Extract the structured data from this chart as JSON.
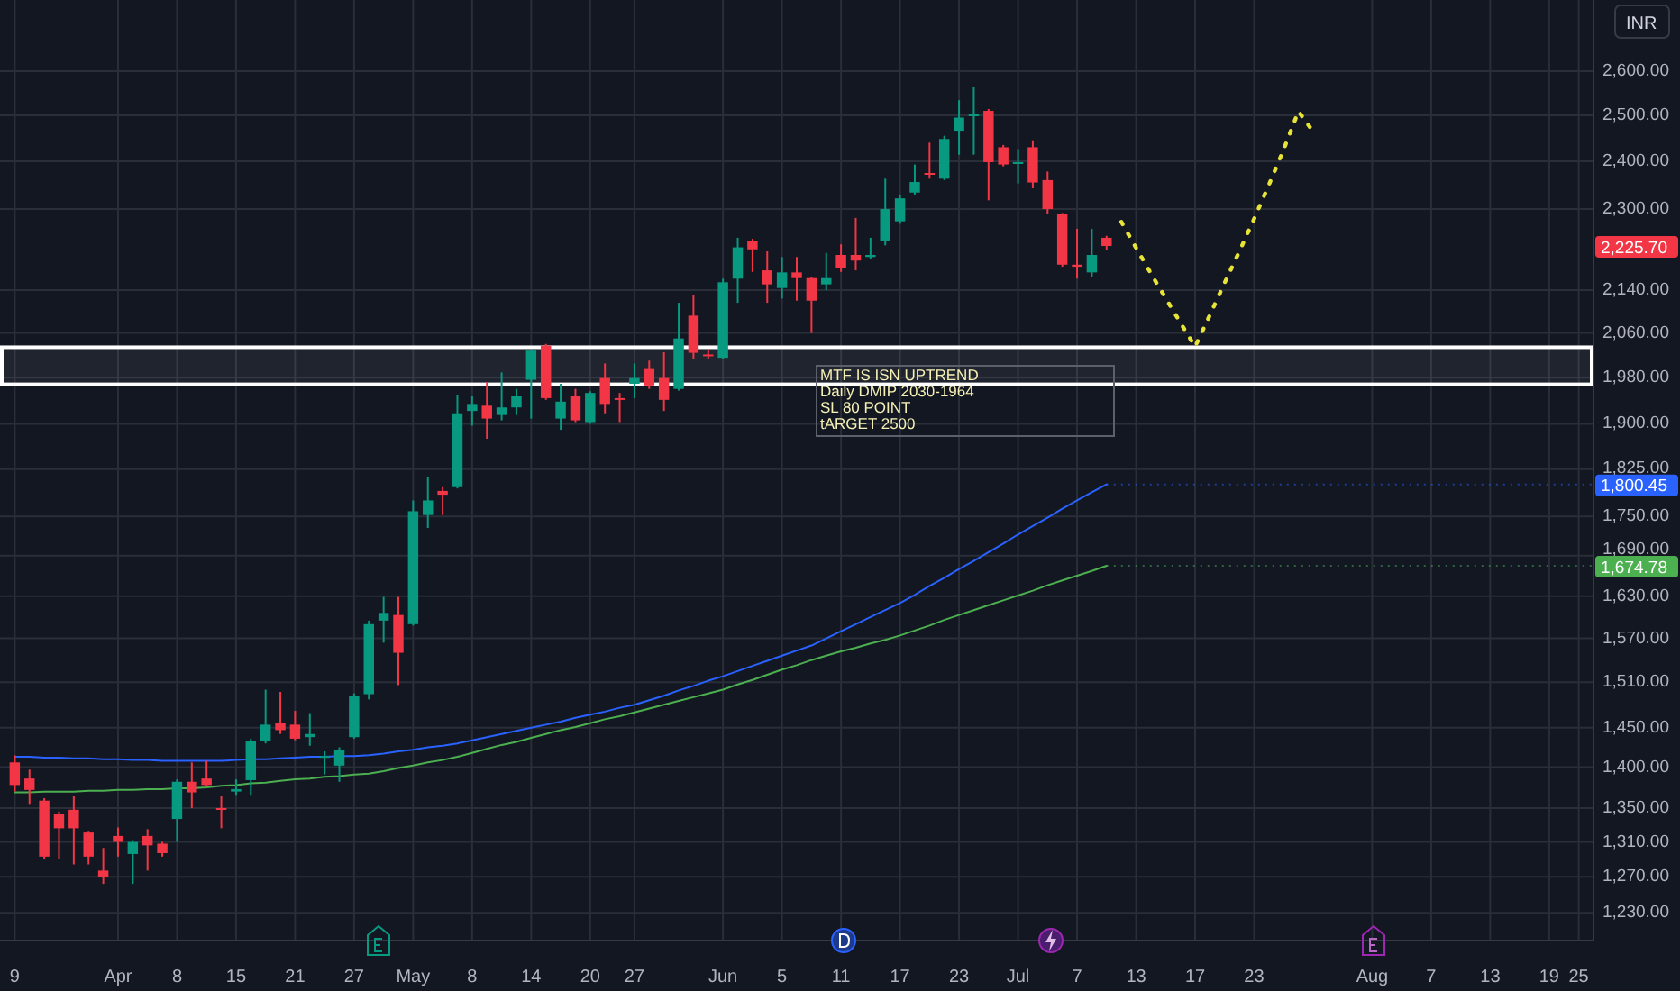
{
  "chart_data": {
    "type": "candlestick",
    "ylabel": "INR",
    "log": true,
    "grid": true,
    "categories": [
      "9",
      null,
      null,
      null,
      null,
      null,
      null,
      "Apr",
      null,
      null,
      null,
      "8",
      null,
      null,
      null,
      "15",
      null,
      null,
      null,
      "21",
      null,
      null,
      null,
      "27",
      null,
      null,
      null,
      "May",
      null,
      null,
      null,
      "8",
      null,
      null,
      null,
      "14",
      null,
      null,
      null,
      "20",
      null,
      null,
      "27",
      null,
      null,
      null,
      null,
      null,
      "Jun",
      null,
      null,
      null,
      "5",
      null,
      null,
      null,
      "11",
      null,
      null,
      null,
      "17",
      null,
      null,
      null,
      "23",
      null,
      null,
      null,
      "Jul",
      null,
      null,
      null,
      "7",
      null,
      null,
      null,
      "13",
      null,
      null,
      null,
      "17",
      null,
      null,
      null,
      "23",
      null,
      null,
      null,
      null,
      null,
      null,
      null,
      "Aug",
      null,
      null,
      null,
      "7",
      null,
      null,
      null,
      "13",
      null,
      null,
      null,
      "19",
      null,
      "25"
    ],
    "ohlc": [
      [
        1406,
        1415,
        1370,
        1378
      ],
      [
        1386,
        1397,
        1355,
        1372
      ],
      [
        1359,
        1362,
        1290,
        1293
      ],
      [
        1343,
        1346,
        1290,
        1326
      ],
      [
        1348,
        1365,
        1284,
        1326
      ],
      [
        1321,
        1323,
        1284,
        1293
      ],
      [
        1277,
        1303,
        1262,
        1270
      ],
      [
        1317,
        1327,
        1293,
        1310
      ],
      [
        1296,
        1312,
        1262,
        1310
      ],
      [
        1317,
        1325,
        1277,
        1306
      ],
      [
        1308,
        1310,
        1293,
        1297
      ],
      [
        1337,
        1385,
        1310,
        1382
      ],
      [
        1382,
        1406,
        1350,
        1369
      ],
      [
        1386,
        1408,
        1376,
        1378
      ],
      [
        1350,
        1365,
        1326,
        1348
      ],
      [
        1370,
        1385,
        1366,
        1373
      ],
      [
        1384,
        1436,
        1366,
        1433
      ],
      [
        1433,
        1500,
        1430,
        1454
      ],
      [
        1456,
        1497,
        1442,
        1447
      ],
      [
        1454,
        1472,
        1434,
        1436
      ],
      [
        1438,
        1469,
        1427,
        1442
      ],
      [
        1412,
        1420,
        1391,
        1414
      ],
      [
        1402,
        1425,
        1382,
        1422
      ],
      [
        1438,
        1495,
        1436,
        1491
      ],
      [
        1494,
        1595,
        1487,
        1590
      ],
      [
        1595,
        1629,
        1564,
        1606
      ],
      [
        1603,
        1629,
        1506,
        1550
      ],
      [
        1590,
        1775,
        1588,
        1758
      ],
      [
        1752,
        1812,
        1732,
        1775
      ],
      [
        1790,
        1796,
        1752,
        1784
      ],
      [
        1796,
        1950,
        1794,
        1918
      ],
      [
        1922,
        1947,
        1897,
        1934
      ],
      [
        1931,
        1972,
        1875,
        1909
      ],
      [
        1915,
        1989,
        1906,
        1928
      ],
      [
        1928,
        1960,
        1915,
        1947
      ],
      [
        1976,
        2028,
        1909,
        2028
      ],
      [
        2037,
        2040,
        1941,
        1944
      ],
      [
        1909,
        1969,
        1890,
        1938
      ],
      [
        1947,
        1960,
        1903,
        1906
      ],
      [
        1903,
        1956,
        1900,
        1953
      ],
      [
        1979,
        2005,
        1918,
        1934
      ],
      [
        1944,
        1953,
        1903,
        1941
      ],
      [
        1969,
        2005,
        1944,
        1979
      ],
      [
        1995,
        2010,
        1960,
        1966
      ],
      [
        1979,
        2025,
        1922,
        1941
      ],
      [
        1960,
        2116,
        1957,
        2050
      ],
      [
        2092,
        2130,
        2012,
        2024
      ],
      [
        2021,
        2030,
        2012,
        2020
      ],
      [
        2015,
        2162,
        2012,
        2155
      ],
      [
        2162,
        2242,
        2116,
        2223
      ],
      [
        2235,
        2240,
        2175,
        2219
      ],
      [
        2178,
        2215,
        2116,
        2151
      ],
      [
        2144,
        2204,
        2124,
        2174
      ],
      [
        2174,
        2204,
        2120,
        2163
      ],
      [
        2163,
        2166,
        2060,
        2120
      ],
      [
        2151,
        2212,
        2140,
        2163
      ],
      [
        2208,
        2229,
        2175,
        2182
      ],
      [
        2208,
        2282,
        2178,
        2197
      ],
      [
        2204,
        2242,
        2201,
        2208
      ],
      [
        2235,
        2363,
        2227,
        2300
      ],
      [
        2275,
        2330,
        2270,
        2322
      ],
      [
        2334,
        2393,
        2330,
        2356
      ],
      [
        2375,
        2440,
        2363,
        2373
      ],
      [
        2363,
        2455,
        2360,
        2448
      ],
      [
        2466,
        2534,
        2414,
        2495
      ],
      [
        2498,
        2563,
        2414,
        2502
      ],
      [
        2510,
        2514,
        2318,
        2398
      ],
      [
        2430,
        2435,
        2389,
        2393
      ],
      [
        2396,
        2426,
        2353,
        2398
      ],
      [
        2430,
        2445,
        2343,
        2355
      ],
      [
        2360,
        2378,
        2290,
        2300
      ],
      [
        2290,
        2292,
        2185,
        2189
      ],
      [
        2189,
        2260,
        2162,
        2185
      ],
      [
        2174,
        2260,
        2166,
        2208
      ],
      [
        2242,
        2246,
        2218,
        2225.7
      ],
      null,
      null,
      null,
      null,
      null,
      null,
      null,
      null,
      null,
      null,
      null,
      null,
      null,
      null,
      null,
      null,
      null,
      null,
      null,
      null,
      null,
      null,
      null,
      null,
      null,
      null,
      null,
      null,
      null,
      null,
      null,
      null
    ],
    "value_labels": [
      null,
      null,
      null,
      null,
      null,
      null,
      null,
      null,
      null,
      null,
      null,
      null,
      null,
      null,
      null,
      null,
      null,
      null,
      null,
      null,
      null,
      null,
      null,
      null,
      null,
      null,
      null,
      null,
      null,
      null,
      null,
      null,
      null,
      null,
      null,
      null,
      null,
      null,
      null,
      null,
      null,
      null,
      null,
      null,
      null,
      null,
      null,
      null,
      null,
      null,
      null,
      null,
      null,
      null,
      null,
      null,
      null,
      null,
      null,
      null,
      null,
      null,
      null,
      null,
      null,
      null,
      null,
      null,
      null,
      null,
      null,
      null,
      null,
      null,
      "2,225.70",
      null,
      null,
      null,
      null,
      null,
      null,
      null,
      null,
      null,
      null,
      null,
      null,
      null,
      null,
      null,
      null,
      null,
      null,
      null,
      null,
      null,
      null,
      null,
      null,
      null,
      null,
      null,
      null,
      null,
      null,
      null,
      null
    ],
    "series": [
      {
        "type": "line",
        "color": "#2962ff",
        "values": [
          1413,
          1413,
          1412,
          1412,
          1411,
          1411,
          1410,
          1410,
          1409,
          1409,
          1408,
          1408,
          1408,
          1408,
          1408,
          1409,
          1410,
          1410,
          1411,
          1412,
          1413,
          1413,
          1414,
          1414,
          1415,
          1417,
          1420,
          1422,
          1425,
          1427,
          1430,
          1434,
          1438,
          1442,
          1446,
          1450,
          1454,
          1458,
          1463,
          1467,
          1471,
          1476,
          1480,
          1486,
          1492,
          1499,
          1505,
          1512,
          1518,
          1525,
          1532,
          1539,
          1546,
          1553,
          1560,
          1570,
          1580,
          1590,
          1600,
          1610,
          1620,
          1632,
          1645,
          1657,
          1670,
          1682,
          1695,
          1708,
          1722,
          1735,
          1748,
          1762,
          1775,
          1788,
          1800.45,
          null,
          null,
          null,
          null,
          null,
          null,
          null,
          null,
          null,
          null,
          null,
          null,
          null,
          null,
          null,
          null,
          null,
          null,
          null,
          null,
          null,
          null,
          null,
          null,
          null,
          null,
          null,
          null,
          null,
          null,
          null,
          null
        ],
        "value_labels": [
          null,
          null,
          null,
          null,
          null,
          null,
          null,
          null,
          null,
          null,
          null,
          null,
          null,
          null,
          null,
          null,
          null,
          null,
          null,
          null,
          null,
          null,
          null,
          null,
          null,
          null,
          null,
          null,
          null,
          null,
          null,
          null,
          null,
          null,
          null,
          null,
          null,
          null,
          null,
          null,
          null,
          null,
          null,
          null,
          null,
          null,
          null,
          null,
          null,
          null,
          null,
          null,
          null,
          null,
          null,
          null,
          null,
          null,
          null,
          null,
          null,
          null,
          null,
          null,
          null,
          null,
          null,
          null,
          null,
          null,
          null,
          null,
          null,
          null,
          "1,800.45",
          null,
          null,
          null,
          null,
          null,
          null,
          null,
          null,
          null,
          null,
          null,
          null,
          null,
          null,
          null,
          null,
          null,
          null,
          null,
          null,
          null,
          null,
          null,
          null,
          null,
          null,
          null,
          null,
          null,
          null,
          null,
          null
        ]
      },
      {
        "type": "line",
        "color": "#4caf50",
        "values": [
          1369,
          1369,
          1370,
          1370,
          1370,
          1371,
          1371,
          1372,
          1372,
          1373,
          1373,
          1374,
          1374,
          1375,
          1377,
          1378,
          1380,
          1381,
          1383,
          1385,
          1386,
          1388,
          1389,
          1391,
          1392,
          1395,
          1399,
          1402,
          1406,
          1409,
          1413,
          1418,
          1423,
          1428,
          1432,
          1437,
          1442,
          1447,
          1451,
          1456,
          1461,
          1465,
          1470,
          1475,
          1480,
          1485,
          1490,
          1495,
          1500,
          1507,
          1513,
          1520,
          1527,
          1533,
          1540,
          1546,
          1552,
          1557,
          1563,
          1568,
          1574,
          1581,
          1588,
          1596,
          1603,
          1610,
          1617,
          1624,
          1631,
          1638,
          1646,
          1653,
          1660,
          1667,
          1674.78,
          null,
          null,
          null,
          null,
          null,
          null,
          null,
          null,
          null,
          null,
          null,
          null,
          null,
          null,
          null,
          null,
          null,
          null,
          null,
          null,
          null,
          null,
          null,
          null,
          null,
          null,
          null,
          null,
          null,
          null,
          null,
          null
        ],
        "value_labels": [
          null,
          null,
          null,
          null,
          null,
          null,
          null,
          null,
          null,
          null,
          null,
          null,
          null,
          null,
          null,
          null,
          null,
          null,
          null,
          null,
          null,
          null,
          null,
          null,
          null,
          null,
          null,
          null,
          null,
          null,
          null,
          null,
          null,
          null,
          null,
          null,
          null,
          null,
          null,
          null,
          null,
          null,
          null,
          null,
          null,
          null,
          null,
          null,
          null,
          null,
          null,
          null,
          null,
          null,
          null,
          null,
          null,
          null,
          null,
          null,
          null,
          null,
          null,
          null,
          null,
          null,
          null,
          null,
          null,
          null,
          null,
          null,
          null,
          null,
          "1,674.78",
          null,
          null,
          null,
          null,
          null,
          null,
          null,
          null,
          null,
          null,
          null,
          null,
          null,
          null,
          null,
          null,
          null,
          null,
          null,
          null,
          null,
          null,
          null,
          null,
          null,
          null,
          null,
          null,
          null,
          null,
          null,
          null
        ]
      },
      {
        "type": "line",
        "color": "#e8e337",
        "line_style": "dotted",
        "values": [
          null,
          null,
          null,
          null,
          null,
          null,
          null,
          null,
          null,
          null,
          null,
          null,
          null,
          null,
          null,
          null,
          null,
          null,
          null,
          null,
          null,
          null,
          null,
          null,
          null,
          null,
          null,
          null,
          null,
          null,
          null,
          null,
          null,
          null,
          null,
          null,
          null,
          null,
          null,
          null,
          null,
          null,
          null,
          null,
          null,
          null,
          null,
          null,
          null,
          null,
          null,
          null,
          null,
          null,
          null,
          null,
          null,
          null,
          null,
          null,
          null,
          null,
          null,
          null,
          null,
          null,
          null,
          null,
          null,
          null,
          null,
          null,
          null,
          null,
          null,
          2274,
          2222,
          2172,
          2125,
          2079,
          2035,
          2093,
          2154,
          2215,
          2280,
          2350,
          2425,
          2509,
          2464,
          null,
          null,
          null,
          null,
          null,
          null,
          null,
          null,
          null,
          null,
          null,
          null,
          null,
          null,
          null,
          null,
          null,
          null
        ]
      }
    ],
    "bands": [
      {
        "axis": "y",
        "from": 1968,
        "to": 2034,
        "color": "#ffffff"
      }
    ],
    "annotations": [
      "MTF IS ISN UPTREND",
      "Daily DMIP 2030-1964",
      "SL 80 POINT",
      "tARGET 2500"
    ],
    "ylim": [
      1200,
      2770
    ],
    "yticks": [
      {
        "value": 1230,
        "label": "1,230.00"
      },
      {
        "value": 1270,
        "label": "1,270.00"
      },
      {
        "value": 1310,
        "label": "1,310.00"
      },
      {
        "value": 1350,
        "label": "1,350.00"
      },
      {
        "value": 1400,
        "label": "1,400.00"
      },
      {
        "value": 1450,
        "label": "1,450.00"
      },
      {
        "value": 1510,
        "label": "1,510.00"
      },
      {
        "value": 1570,
        "label": "1,570.00"
      },
      {
        "value": 1630,
        "label": "1,630.00"
      },
      {
        "value": 1690,
        "label": "1,690.00"
      },
      {
        "value": 1750,
        "label": "1,750.00"
      },
      {
        "value": 1825,
        "label": "1,825.00"
      },
      {
        "value": 1900,
        "label": "1,900.00"
      },
      {
        "value": 1980,
        "label": "1,980.00"
      },
      {
        "value": 2060,
        "label": "2,060.00"
      },
      {
        "value": 2140,
        "label": "2,140.00"
      },
      {
        "value": 2300,
        "label": "2,300.00"
      },
      {
        "value": 2400,
        "label": "2,400.00"
      },
      {
        "value": 2500,
        "label": "2,500.00"
      },
      {
        "value": 2600,
        "label": "2,600.00"
      }
    ]
  }
}
